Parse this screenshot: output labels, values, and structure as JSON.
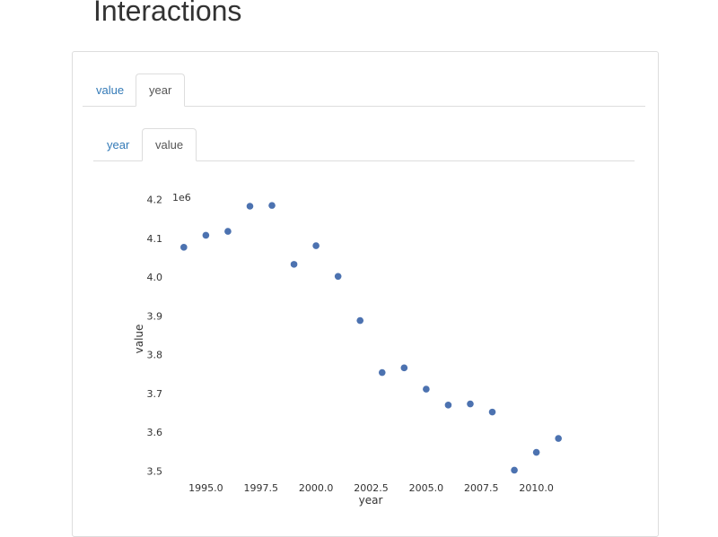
{
  "page": {
    "title": "Interactions"
  },
  "outer_tabs": [
    "value",
    "year"
  ],
  "inner_tabs": [
    "year",
    "value"
  ],
  "colors": {
    "point": "#4c72b0",
    "tab_link": "#337ab7",
    "border": "#dddddd"
  },
  "chart_data": {
    "type": "scatter",
    "xlabel": "year",
    "ylabel": "value",
    "y_offset_label": "1e6",
    "xlim": [
      1993.6,
      2011.4
    ],
    "ylim": [
      3.48,
      4.22
    ],
    "x_ticks": [
      1995.0,
      1997.5,
      2000.0,
      2002.5,
      2005.0,
      2007.5,
      2010.0
    ],
    "x_tick_labels": [
      "1995.0",
      "1997.5",
      "2000.0",
      "2002.5",
      "2005.0",
      "2007.5",
      "2010.0"
    ],
    "y_ticks": [
      3.5,
      3.6,
      3.7,
      3.8,
      3.9,
      4.0,
      4.1,
      4.2
    ],
    "y_tick_labels": [
      "3.5",
      "3.6",
      "3.7",
      "3.8",
      "3.9",
      "4.0",
      "4.1",
      "4.2"
    ],
    "x": [
      1994,
      1995,
      1996,
      1997,
      1998,
      1999,
      2000,
      2001,
      2002,
      2003,
      2004,
      2005,
      2006,
      2007,
      2008,
      2009,
      2010,
      2011
    ],
    "y": [
      4.077,
      4.108,
      4.118,
      4.183,
      4.185,
      4.033,
      4.081,
      4.002,
      3.888,
      3.754,
      3.766,
      3.711,
      3.67,
      3.673,
      3.652,
      3.502,
      3.548,
      3.584
    ]
  }
}
